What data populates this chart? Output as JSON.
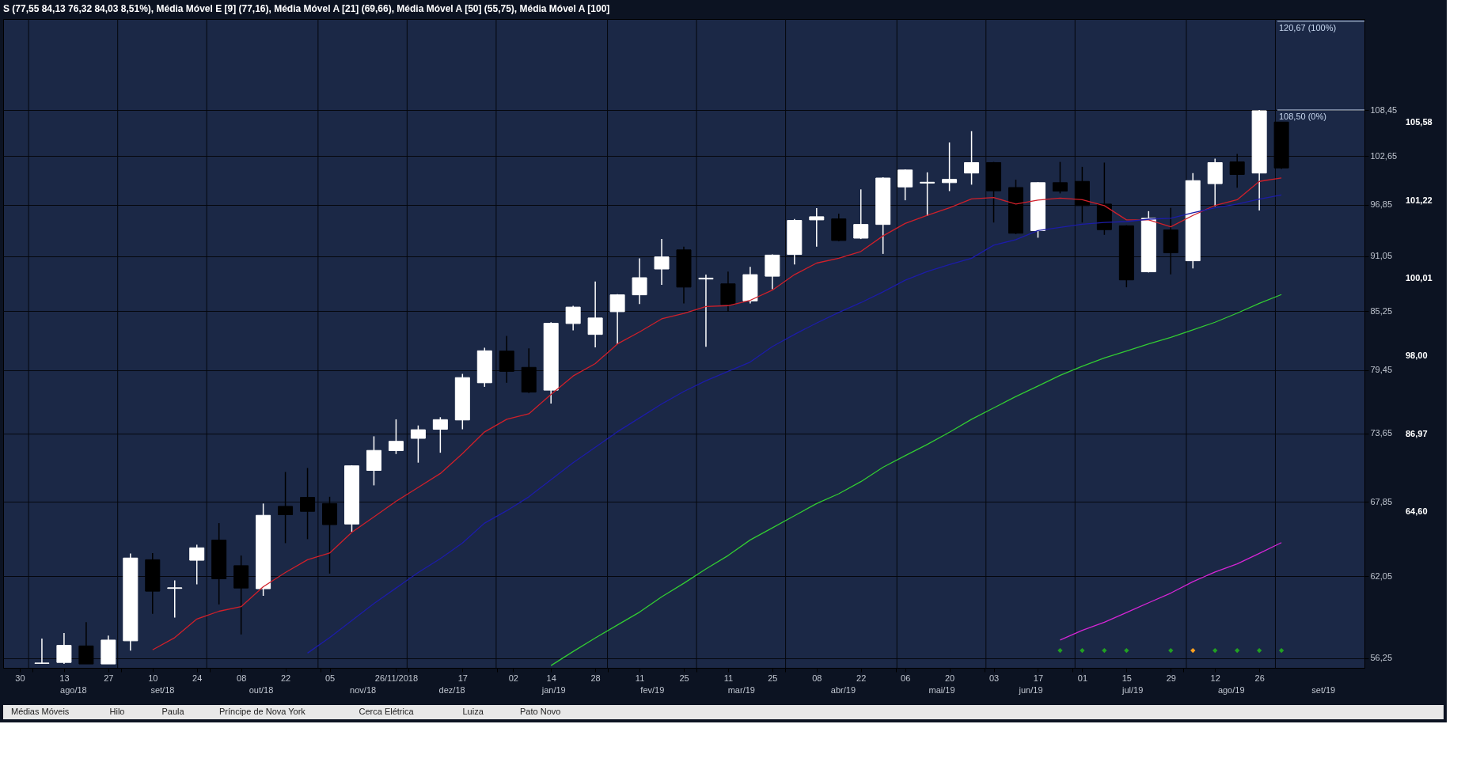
{
  "chart_data": {
    "type": "candlestick",
    "title": "S (77,55  84,13  76,32  84,03  8,51%), Média Móvel E [9] (77,16), Média Móvel A [21] (69,66), Média Móvel A [50] (55,75), Média Móvel A [100]",
    "x": [
      "2018-08-06",
      "2018-08-13",
      "2018-08-20",
      "2018-08-27",
      "2018-09-03",
      "2018-09-10",
      "2018-09-17",
      "2018-09-24",
      "2018-10-01",
      "2018-10-08",
      "2018-10-15",
      "2018-10-22",
      "2018-10-29",
      "2018-11-05",
      "2018-11-12",
      "2018-11-19",
      "2018-11-26",
      "2018-12-03",
      "2018-12-10",
      "2018-12-17",
      "2018-12-24",
      "2018-12-31",
      "2019-01-07",
      "2019-01-14",
      "2019-01-21",
      "2019-01-28",
      "2019-02-04",
      "2019-02-11",
      "2019-02-18",
      "2019-02-25",
      "2019-03-04",
      "2019-03-11",
      "2019-03-18",
      "2019-03-25",
      "2019-04-01",
      "2019-04-08",
      "2019-04-15",
      "2019-04-22",
      "2019-04-29",
      "2019-05-06",
      "2019-05-13",
      "2019-05-20",
      "2019-05-27",
      "2019-06-03",
      "2019-06-10",
      "2019-06-17",
      "2019-06-24",
      "2019-07-01",
      "2019-07-08",
      "2019-07-15",
      "2019-07-22",
      "2019-07-29",
      "2019-08-05",
      "2019-08-12",
      "2019-08-19",
      "2019-08-26",
      "2019-09-02"
    ],
    "ohlc": [
      [
        55.9,
        57.59,
        55.86,
        55.92
      ],
      [
        55.96,
        57.97,
        55.86,
        57.12
      ],
      [
        57.08,
        58.73,
        55.86,
        55.86
      ],
      [
        55.86,
        57.79,
        55.86,
        57.48
      ],
      [
        57.43,
        63.77,
        56.76,
        63.42
      ],
      [
        63.29,
        63.8,
        59.32,
        60.95
      ],
      [
        61.15,
        61.74,
        59.05,
        61.2
      ],
      [
        63.25,
        64.44,
        61.45,
        64.2
      ],
      [
        64.8,
        66.13,
        59.99,
        61.86
      ],
      [
        62.84,
        63.61,
        57.87,
        61.18
      ],
      [
        61.13,
        67.7,
        60.61,
        66.75
      ],
      [
        67.47,
        70.31,
        64.56,
        66.8
      ],
      [
        68.2,
        70.65,
        64.87,
        67.07
      ],
      [
        67.7,
        68.25,
        62.25,
        66.01
      ],
      [
        66.06,
        70.88,
        65.45,
        70.83
      ],
      [
        70.44,
        73.38,
        69.19,
        72.15
      ],
      [
        72.13,
        74.89,
        71.84,
        72.94
      ],
      [
        73.2,
        74.34,
        71.1,
        73.96
      ],
      [
        74.0,
        75.08,
        71.95,
        74.86
      ],
      [
        74.83,
        79.08,
        74.0,
        78.73
      ],
      [
        78.24,
        81.6,
        77.86,
        81.3
      ],
      [
        81.27,
        82.76,
        78.24,
        79.32
      ],
      [
        79.7,
        81.54,
        77.29,
        77.38
      ],
      [
        77.55,
        84.13,
        76.32,
        84.03
      ],
      [
        84.0,
        85.8,
        83.32,
        85.67
      ],
      [
        82.91,
        88.34,
        81.63,
        84.56
      ],
      [
        85.2,
        87.0,
        81.94,
        86.94
      ],
      [
        86.94,
        90.82,
        85.99,
        88.74
      ],
      [
        89.67,
        92.95,
        87.99,
        90.98
      ],
      [
        91.75,
        92.1,
        86.05,
        87.75
      ],
      [
        88.6,
        89.07,
        81.7,
        88.7
      ],
      [
        88.09,
        89.39,
        85.2,
        85.93
      ],
      [
        86.31,
        89.91,
        86.05,
        89.07
      ],
      [
        88.9,
        91.25,
        87.53,
        91.18
      ],
      [
        91.25,
        95.22,
        90.17,
        95.05
      ],
      [
        95.11,
        96.47,
        92.1,
        95.47
      ],
      [
        95.22,
        95.83,
        92.7,
        92.79
      ],
      [
        93.05,
        98.65,
        92.95,
        94.59
      ],
      [
        94.59,
        100.1,
        91.31,
        100.0
      ],
      [
        98.94,
        101.04,
        97.37,
        100.97
      ],
      [
        99.4,
        100.69,
        95.55,
        99.5
      ],
      [
        99.45,
        104.35,
        98.45,
        99.84
      ],
      [
        100.6,
        105.78,
        99.21,
        101.87
      ],
      [
        101.87,
        101.95,
        94.81,
        98.48
      ],
      [
        98.87,
        99.8,
        93.5,
        93.6
      ],
      [
        93.9,
        99.5,
        93.1,
        99.45
      ],
      [
        99.45,
        101.95,
        98.18,
        98.45
      ],
      [
        99.6,
        101.35,
        94.81,
        96.75
      ],
      [
        96.93,
        101.87,
        93.42,
        94.0
      ],
      [
        94.44,
        94.5,
        87.73,
        88.51
      ],
      [
        89.37,
        96.11,
        89.3,
        95.29
      ],
      [
        93.97,
        96.49,
        89.1,
        91.44
      ],
      [
        90.56,
        100.6,
        89.73,
        99.69
      ],
      [
        99.33,
        102.34,
        96.67,
        101.87
      ],
      [
        101.95,
        102.94,
        98.84,
        100.43
      ],
      [
        100.6,
        108.5,
        96.18,
        108.4
      ],
      [
        106.94,
        106.94,
        101.1,
        101.22
      ]
    ],
    "series": [
      {
        "type": "line",
        "color": "#d0202a",
        "x": [
          "2018-09-10",
          "2018-09-17",
          "2018-09-24",
          "2018-10-01",
          "2018-10-08",
          "2018-10-15",
          "2018-10-22",
          "2018-10-29",
          "2018-11-05",
          "2018-11-12",
          "2018-11-19",
          "2018-11-26",
          "2018-12-03",
          "2018-12-10",
          "2018-12-17",
          "2018-12-24",
          "2018-12-31",
          "2019-01-07",
          "2019-01-14",
          "2019-01-21",
          "2019-01-28",
          "2019-02-04",
          "2019-02-11",
          "2019-02-18",
          "2019-02-25",
          "2019-03-04",
          "2019-03-11",
          "2019-03-18",
          "2019-03-25",
          "2019-04-01",
          "2019-04-08",
          "2019-04-15",
          "2019-04-22",
          "2019-04-29",
          "2019-05-06",
          "2019-05-13",
          "2019-05-20",
          "2019-05-27",
          "2019-06-03",
          "2019-06-10",
          "2019-06-17",
          "2019-06-24",
          "2019-07-01",
          "2019-07-08",
          "2019-07-15",
          "2019-07-22",
          "2019-07-29",
          "2019-08-05",
          "2019-08-12",
          "2019-08-19",
          "2019-08-26",
          "2019-09-02"
        ],
        "values": [
          56.81,
          57.65,
          58.95,
          59.5,
          59.83,
          61.28,
          62.33,
          63.29,
          63.8,
          65.4,
          66.63,
          67.88,
          69.02,
          70.18,
          71.88,
          73.77,
          74.89,
          75.39,
          77.16,
          78.88,
          80.06,
          81.97,
          83.16,
          84.47,
          85.03,
          85.73,
          85.82,
          86.37,
          87.43,
          89.07,
          90.31,
          90.84,
          91.58,
          93.3,
          94.7,
          95.63,
          96.49,
          97.53,
          97.69,
          96.93,
          97.39,
          97.62,
          97.43,
          96.75,
          95.11,
          95.11,
          94.33,
          95.62,
          96.78,
          97.43,
          99.6,
          100.01
        ]
      },
      {
        "type": "line",
        "color": "#1c1ca8",
        "x": [
          "2018-10-29",
          "2018-11-05",
          "2018-11-12",
          "2018-11-19",
          "2018-11-26",
          "2018-12-03",
          "2018-12-10",
          "2018-12-17",
          "2018-12-24",
          "2018-12-31",
          "2019-01-07",
          "2019-01-14",
          "2019-01-21",
          "2019-01-28",
          "2019-02-04",
          "2019-02-11",
          "2019-02-18",
          "2019-02-25",
          "2019-03-04",
          "2019-03-11",
          "2019-03-18",
          "2019-03-25",
          "2019-04-01",
          "2019-04-08",
          "2019-04-15",
          "2019-04-22",
          "2019-04-29",
          "2019-05-06",
          "2019-05-13",
          "2019-05-20",
          "2019-05-27",
          "2019-06-03",
          "2019-06-10",
          "2019-06-17",
          "2019-06-24",
          "2019-07-01",
          "2019-07-08",
          "2019-07-15",
          "2019-07-22",
          "2019-07-29",
          "2019-08-05",
          "2019-08-12",
          "2019-08-19",
          "2019-08-26",
          "2019-09-02"
        ],
        "values": [
          56.59,
          57.65,
          58.84,
          60.05,
          61.18,
          62.33,
          63.37,
          64.57,
          66.13,
          67.12,
          68.25,
          69.66,
          71.1,
          72.42,
          73.78,
          75.02,
          76.28,
          77.43,
          78.44,
          79.32,
          80.21,
          81.71,
          82.91,
          84.05,
          85.12,
          86.13,
          87.25,
          88.48,
          89.41,
          90.14,
          90.84,
          92.27,
          92.88,
          93.9,
          94.26,
          94.62,
          94.81,
          94.92,
          95.19,
          95.29,
          95.92,
          96.49,
          96.93,
          97.5,
          98.0
        ]
      },
      {
        "type": "line",
        "color": "#33cc33",
        "x": [
          "2019-01-14",
          "2019-01-21",
          "2019-01-28",
          "2019-02-04",
          "2019-02-11",
          "2019-02-18",
          "2019-02-25",
          "2019-03-04",
          "2019-03-11",
          "2019-03-18",
          "2019-03-25",
          "2019-04-01",
          "2019-04-08",
          "2019-04-15",
          "2019-04-22",
          "2019-04-29",
          "2019-05-06",
          "2019-05-13",
          "2019-05-20",
          "2019-05-27",
          "2019-06-03",
          "2019-06-10",
          "2019-06-17",
          "2019-06-24",
          "2019-07-01",
          "2019-07-08",
          "2019-07-15",
          "2019-07-22",
          "2019-07-29",
          "2019-08-05",
          "2019-08-12",
          "2019-08-19",
          "2019-08-26",
          "2019-09-02"
        ],
        "values": [
          55.75,
          56.7,
          57.63,
          58.53,
          59.44,
          60.54,
          61.53,
          62.6,
          63.61,
          64.81,
          65.75,
          66.72,
          67.7,
          68.5,
          69.5,
          70.71,
          71.7,
          72.67,
          73.74,
          74.89,
          75.92,
          76.96,
          77.94,
          78.94,
          79.81,
          80.61,
          81.27,
          81.97,
          82.61,
          83.36,
          84.13,
          85.05,
          86.05,
          86.97
        ]
      },
      {
        "type": "line",
        "color": "#d626d6",
        "x": [
          "2019-06-24",
          "2019-07-01",
          "2019-07-08",
          "2019-07-15",
          "2019-07-22",
          "2019-07-29",
          "2019-08-05",
          "2019-08-12",
          "2019-08-19",
          "2019-08-26",
          "2019-09-02"
        ],
        "values": [
          57.48,
          58.15,
          58.72,
          59.41,
          60.11,
          60.81,
          61.65,
          62.37,
          62.98,
          63.77,
          64.6
        ]
      },
      {
        "type": "scatter",
        "marker": "diamond",
        "x": [
          "2019-06-24",
          "2019-07-01",
          "2019-07-08",
          "2019-07-15",
          "2019-07-29",
          "2019-08-05",
          "2019-08-12",
          "2019-08-19",
          "2019-08-26",
          "2019-09-02"
        ],
        "values": [
          56.77,
          56.77,
          56.77,
          56.77,
          56.77,
          56.77,
          56.77,
          56.77,
          56.77,
          56.77
        ],
        "colors": [
          "#22a022",
          "#22a022",
          "#22a022",
          "#22a022",
          "#22a022",
          "#ffa020",
          "#22a022",
          "#22a022",
          "#22a022",
          "#22a022"
        ]
      }
    ],
    "log": true,
    "xlim": [
      "2018-07-26",
      "2019-09-27"
    ],
    "ylim": [
      55.6,
      121
    ],
    "yticks": [
      {
        "value": 56.25,
        "label": "56,25"
      },
      {
        "value": 62.05,
        "label": "62,05"
      },
      {
        "value": 67.85,
        "label": "67,85"
      },
      {
        "value": 73.65,
        "label": "73,65"
      },
      {
        "value": 79.45,
        "label": "79,45"
      },
      {
        "value": 85.25,
        "label": "85,25"
      },
      {
        "value": 91.05,
        "label": "91,05"
      },
      {
        "value": 96.85,
        "label": "96,85"
      },
      {
        "value": 102.65,
        "label": "102,65"
      },
      {
        "value": 108.45,
        "label": "108,45"
      }
    ],
    "xticks": [
      {
        "value": "2018-07-30",
        "label": "30"
      },
      {
        "value": "2018-08-03",
        "label": null
      },
      {
        "value": "2018-08-13",
        "label": "13"
      },
      {
        "value": "2018-08-27",
        "label": "27"
      },
      {
        "value": "2018-08-31",
        "label": null
      },
      {
        "value": "2018-09-10",
        "label": "10"
      },
      {
        "value": "2018-09-24",
        "label": "24"
      },
      {
        "value": "2018-09-28",
        "label": null
      },
      {
        "value": "2018-10-08",
        "label": "08"
      },
      {
        "value": "2018-10-22",
        "label": "22"
      },
      {
        "value": "2018-11-02",
        "label": null
      },
      {
        "value": "2018-11-05",
        "label": "05"
      },
      {
        "value": "2018-11-26",
        "label": "26/11/2018"
      },
      {
        "value": "2018-11-30",
        "label": null
      },
      {
        "value": "2018-12-17",
        "label": "17"
      },
      {
        "value": "2018-12-28",
        "label": null
      },
      {
        "value": "2019-01-02",
        "label": "02"
      },
      {
        "value": "2019-01-14",
        "label": "14"
      },
      {
        "value": "2019-01-28",
        "label": "28"
      },
      {
        "value": "2019-02-01",
        "label": null
      },
      {
        "value": "2019-02-11",
        "label": "11"
      },
      {
        "value": "2019-02-25",
        "label": "25"
      },
      {
        "value": "2019-03-01",
        "label": null
      },
      {
        "value": "2019-03-11",
        "label": "11"
      },
      {
        "value": "2019-03-25",
        "label": "25"
      },
      {
        "value": "2019-03-29",
        "label": null
      },
      {
        "value": "2019-04-08",
        "label": "08"
      },
      {
        "value": "2019-04-22",
        "label": "22"
      },
      {
        "value": "2019-05-03",
        "label": null
      },
      {
        "value": "2019-05-06",
        "label": "06"
      },
      {
        "value": "2019-05-20",
        "label": "20"
      },
      {
        "value": "2019-05-31",
        "label": null
      },
      {
        "value": "2019-06-03",
        "label": "03"
      },
      {
        "value": "2019-06-17",
        "label": "17"
      },
      {
        "value": "2019-06-28",
        "label": null
      },
      {
        "value": "2019-07-01",
        "label": "01"
      },
      {
        "value": "2019-07-15",
        "label": "15"
      },
      {
        "value": "2019-07-29",
        "label": "29"
      },
      {
        "value": "2019-08-02",
        "label": null
      },
      {
        "value": "2019-08-12",
        "label": "12"
      },
      {
        "value": "2019-08-26",
        "label": "26"
      }
    ],
    "x2lim": [
      "2018-07-26",
      "2019-09-27"
    ],
    "x2ticks": [
      {
        "value": "2018-08-03",
        "label": null
      },
      {
        "value": "2018-08-17",
        "label": "ago/18"
      },
      {
        "value": "2018-08-31",
        "label": null
      },
      {
        "value": "2018-09-14",
        "label": "set/18"
      },
      {
        "value": "2018-09-28",
        "label": null
      },
      {
        "value": "2018-10-15",
        "label": "out/18"
      },
      {
        "value": "2018-11-02",
        "label": null
      },
      {
        "value": "2018-11-16",
        "label": "nov/18"
      },
      {
        "value": "2018-11-30",
        "label": null
      },
      {
        "value": "2018-12-14",
        "label": "dez/18"
      },
      {
        "value": "2018-12-28",
        "label": null
      },
      {
        "value": "2019-01-15",
        "label": "jan/19"
      },
      {
        "value": "2019-02-01",
        "label": null
      },
      {
        "value": "2019-02-15",
        "label": "fev/19"
      },
      {
        "value": "2019-03-01",
        "label": null
      },
      {
        "value": "2019-03-15",
        "label": "mar/19"
      },
      {
        "value": "2019-03-29",
        "label": null
      },
      {
        "value": "2019-04-16",
        "label": "abr/19"
      },
      {
        "value": "2019-05-03",
        "label": null
      },
      {
        "value": "2019-05-17",
        "label": "mai/19"
      },
      {
        "value": "2019-05-31",
        "label": null
      },
      {
        "value": "2019-06-14",
        "label": "jun/19"
      },
      {
        "value": "2019-06-28",
        "label": null
      },
      {
        "value": "2019-07-16",
        "label": "jul/19"
      },
      {
        "value": "2019-08-02",
        "label": null
      },
      {
        "value": "2019-08-16",
        "label": "ago/19"
      },
      {
        "value": "2019-08-30",
        "label": null
      },
      {
        "value": "2019-09-14",
        "label": "set/19"
      }
    ],
    "grid": true,
    "ref_lines": [
      {
        "axis": "y",
        "value": 120.67,
        "label": "120,67 (100%)",
        "color": "#c8d8f0"
      },
      {
        "axis": "y",
        "value": 108.5,
        "label": "108,50 (0%)",
        "color": "#c8d8f0"
      }
    ],
    "annotations": [
      "105,58",
      "101,22",
      "100,01",
      "98,00",
      "86,97",
      "64,60",
      "Médias Móveis",
      "Hilo",
      "Paula",
      "Príncipe de Nova York",
      "Cerca Elétrica",
      "Luiza",
      "Pato Novo"
    ]
  }
}
